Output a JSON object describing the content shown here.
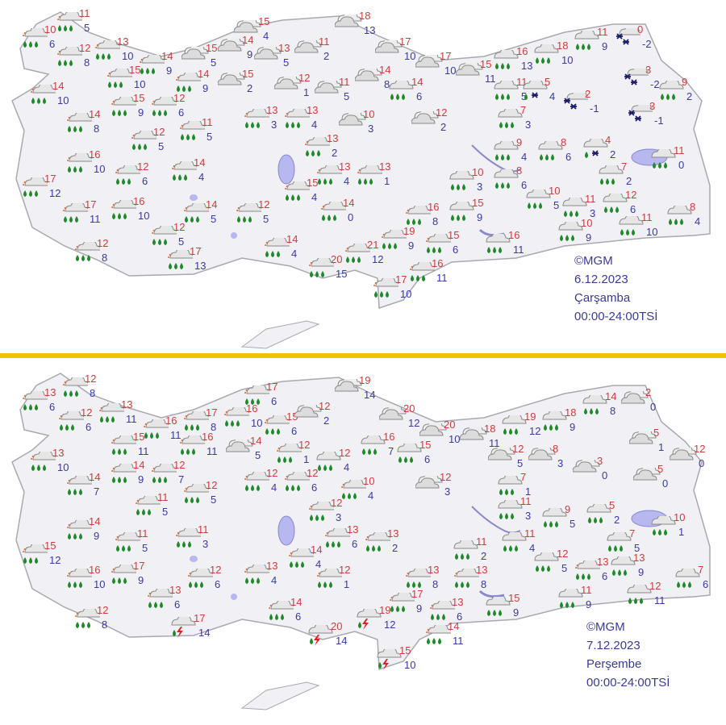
{
  "colors": {
    "divider": "#f2c200",
    "max_temp": "#d23a3a",
    "min_temp": "#3838a8",
    "land": "#f1f1f5",
    "border": "#b8b8c0",
    "water": "#b8b8f0",
    "rain_drop": "#1f8a2a"
  },
  "icon_legend": {
    "sr": "sun-cloud-rain-icon",
    "c": "cloud-icon",
    "r": "rain-icon",
    "s": "snow-icon",
    "rs": "rain-snow-icon",
    "t": "thunderstorm-icon"
  },
  "maps": [
    {
      "credit": "©MGM",
      "date": "6.12.2023",
      "day": "Çarşamba",
      "period": "00:00-24:00TSİ",
      "stations": [
        {
          "icon": "sr",
          "high": "10",
          "low": "6"
        },
        {
          "icon": "sr",
          "high": "11",
          "low": "5"
        },
        {
          "icon": "sr",
          "high": "12",
          "low": "8"
        },
        {
          "icon": "sr",
          "high": "13",
          "low": "10"
        },
        {
          "icon": "sr",
          "high": "15",
          "low": "10"
        },
        {
          "icon": "sr",
          "high": "14",
          "low": "9"
        },
        {
          "icon": "sr",
          "high": "14",
          "low": "9"
        },
        {
          "icon": "c",
          "high": "15",
          "low": "5"
        },
        {
          "icon": "c",
          "high": "14",
          "low": "9"
        },
        {
          "icon": "c",
          "high": "13",
          "low": "5"
        },
        {
          "icon": "c",
          "high": "11",
          "low": "2"
        },
        {
          "icon": "c",
          "high": "15",
          "low": "4"
        },
        {
          "icon": "c",
          "high": "15",
          "low": "2"
        },
        {
          "icon": "c",
          "high": "12",
          "low": "1"
        },
        {
          "icon": "c",
          "high": "11",
          "low": "5"
        },
        {
          "icon": "c",
          "high": "18",
          "low": "13"
        },
        {
          "icon": "c",
          "high": "17",
          "low": "10"
        },
        {
          "icon": "c",
          "high": "17",
          "low": "10"
        },
        {
          "icon": "c",
          "high": "14",
          "low": "8"
        },
        {
          "icon": "r",
          "high": "14",
          "low": "6"
        },
        {
          "icon": "c",
          "high": "15",
          "low": "11"
        },
        {
          "icon": "r",
          "high": "16",
          "low": "13"
        },
        {
          "icon": "r",
          "high": "18",
          "low": "10"
        },
        {
          "icon": "r",
          "high": "11",
          "low": "9"
        },
        {
          "icon": "s",
          "high": "0",
          "low": "-2"
        },
        {
          "icon": "s",
          "high": "3",
          "low": "-2"
        },
        {
          "icon": "r",
          "high": "9",
          "low": "2"
        },
        {
          "icon": "r",
          "high": "11",
          "low": "5"
        },
        {
          "icon": "rs",
          "high": "5",
          "low": "4"
        },
        {
          "icon": "s",
          "high": "2",
          "low": "-1"
        },
        {
          "icon": "s",
          "high": "3",
          "low": "-1"
        },
        {
          "icon": "r",
          "high": "7",
          "low": "3"
        },
        {
          "icon": "c",
          "high": "12",
          "low": "2"
        },
        {
          "icon": "c",
          "high": "10",
          "low": "3"
        },
        {
          "icon": "sr",
          "high": "14",
          "low": "10"
        },
        {
          "icon": "sr",
          "high": "14",
          "low": "8"
        },
        {
          "icon": "sr",
          "high": "15",
          "low": "9"
        },
        {
          "icon": "sr",
          "high": "12",
          "low": "6"
        },
        {
          "icon": "sr",
          "high": "11",
          "low": "5"
        },
        {
          "icon": "sr",
          "high": "12",
          "low": "5"
        },
        {
          "icon": "sr",
          "high": "13",
          "low": "3"
        },
        {
          "icon": "sr",
          "high": "13",
          "low": "4"
        },
        {
          "icon": "sr",
          "high": "13",
          "low": "2"
        },
        {
          "icon": "sr",
          "high": "16",
          "low": "10"
        },
        {
          "icon": "sr",
          "high": "12",
          "low": "6"
        },
        {
          "icon": "sr",
          "high": "14",
          "low": "4"
        },
        {
          "icon": "sr",
          "high": "17",
          "low": "12"
        },
        {
          "icon": "sr",
          "high": "17",
          "low": "11"
        },
        {
          "icon": "sr",
          "high": "16",
          "low": "10"
        },
        {
          "icon": "sr",
          "high": "12",
          "low": "5"
        },
        {
          "icon": "sr",
          "high": "14",
          "low": "5"
        },
        {
          "icon": "sr",
          "high": "12",
          "low": "5"
        },
        {
          "icon": "sr",
          "high": "15",
          "low": "4"
        },
        {
          "icon": "sr",
          "high": "13",
          "low": "4"
        },
        {
          "icon": "sr",
          "high": "13",
          "low": "1"
        },
        {
          "icon": "sr",
          "high": "14",
          "low": "0"
        },
        {
          "icon": "sr",
          "high": "12",
          "low": "8"
        },
        {
          "icon": "sr",
          "high": "17",
          "low": "13"
        },
        {
          "icon": "sr",
          "high": "14",
          "low": "4"
        },
        {
          "icon": "sr",
          "high": "20",
          "low": "15"
        },
        {
          "icon": "sr",
          "high": "21",
          "low": "12"
        },
        {
          "icon": "sr",
          "high": "19",
          "low": "9"
        },
        {
          "icon": "sr",
          "high": "16",
          "low": "8"
        },
        {
          "icon": "sr",
          "high": "15",
          "low": "6"
        },
        {
          "icon": "sr",
          "high": "16",
          "low": "11"
        },
        {
          "icon": "sr",
          "high": "17",
          "low": "10"
        },
        {
          "icon": "r",
          "high": "15",
          "low": "9"
        },
        {
          "icon": "r",
          "high": "10",
          "low": "3"
        },
        {
          "icon": "r",
          "high": "8",
          "low": "6"
        },
        {
          "icon": "r",
          "high": "9",
          "low": "4"
        },
        {
          "icon": "r",
          "high": "8",
          "low": "6"
        },
        {
          "icon": "rs",
          "high": "4",
          "low": "2"
        },
        {
          "icon": "r",
          "high": "7",
          "low": "2"
        },
        {
          "icon": "r",
          "high": "11",
          "low": "0"
        },
        {
          "icon": "r",
          "high": "10",
          "low": "5"
        },
        {
          "icon": "r",
          "high": "11",
          "low": "3"
        },
        {
          "icon": "r",
          "high": "12",
          "low": "6"
        },
        {
          "icon": "r",
          "high": "10",
          "low": "9"
        },
        {
          "icon": "r",
          "high": "16",
          "low": "11"
        },
        {
          "icon": "r",
          "high": "11",
          "low": "10"
        },
        {
          "icon": "r",
          "high": "8",
          "low": "4"
        }
      ]
    },
    {
      "credit": "©MGM",
      "date": "7.12.2023",
      "day": "Perşembe",
      "period": "00:00-24:00TSİ",
      "stations": [
        {
          "icon": "sr",
          "high": "13",
          "low": "6"
        },
        {
          "icon": "sr",
          "high": "12",
          "low": "8"
        },
        {
          "icon": "sr",
          "high": "12",
          "low": "6"
        },
        {
          "icon": "sr",
          "high": "13",
          "low": "11"
        },
        {
          "icon": "sr",
          "high": "15",
          "low": "11"
        },
        {
          "icon": "sr",
          "high": "16",
          "low": "11"
        },
        {
          "icon": "sr",
          "high": "17",
          "low": "8"
        },
        {
          "icon": "sr",
          "high": "16",
          "low": "11"
        },
        {
          "icon": "sr",
          "high": "16",
          "low": "10"
        },
        {
          "icon": "sr",
          "high": "17",
          "low": "6"
        },
        {
          "icon": "sr",
          "high": "15",
          "low": "6"
        },
        {
          "icon": "c",
          "high": "12",
          "low": "2"
        },
        {
          "icon": "c",
          "high": "19",
          "low": "14"
        },
        {
          "icon": "c",
          "high": "20",
          "low": "12"
        },
        {
          "icon": "c",
          "high": "20",
          "low": "10"
        },
        {
          "icon": "c",
          "high": "18",
          "low": "11"
        },
        {
          "icon": "r",
          "high": "19",
          "low": "12"
        },
        {
          "icon": "r",
          "high": "18",
          "low": "9"
        },
        {
          "icon": "r",
          "high": "14",
          "low": "8"
        },
        {
          "icon": "c",
          "high": "2",
          "low": "0"
        },
        {
          "icon": "c",
          "high": "5",
          "low": "1"
        },
        {
          "icon": "c",
          "high": "12",
          "low": "0"
        },
        {
          "icon": "sr",
          "high": "13",
          "low": "10"
        },
        {
          "icon": "sr",
          "high": "14",
          "low": "7"
        },
        {
          "icon": "sr",
          "high": "14",
          "low": "9"
        },
        {
          "icon": "sr",
          "high": "12",
          "low": "7"
        },
        {
          "icon": "c",
          "high": "14",
          "low": "5"
        },
        {
          "icon": "sr",
          "high": "12",
          "low": "1"
        },
        {
          "icon": "r",
          "high": "12",
          "low": "4"
        },
        {
          "icon": "r",
          "high": "16",
          "low": "7"
        },
        {
          "icon": "r",
          "high": "15",
          "low": "6"
        },
        {
          "icon": "c",
          "high": "12",
          "low": "5"
        },
        {
          "icon": "c",
          "high": "8",
          "low": "3"
        },
        {
          "icon": "c",
          "high": "3",
          "low": "0"
        },
        {
          "icon": "c",
          "high": "5",
          "low": "0"
        },
        {
          "icon": "c",
          "high": "12",
          "low": "3"
        },
        {
          "icon": "r",
          "high": "7",
          "low": "1"
        },
        {
          "icon": "sr",
          "high": "12",
          "low": "4"
        },
        {
          "icon": "sr",
          "high": "12",
          "low": "6"
        },
        {
          "icon": "sr",
          "high": "10",
          "low": "4"
        },
        {
          "icon": "sr",
          "high": "12",
          "low": "5"
        },
        {
          "icon": "sr",
          "high": "11",
          "low": "5"
        },
        {
          "icon": "sr",
          "high": "14",
          "low": "9"
        },
        {
          "icon": "sr",
          "high": "11",
          "low": "5"
        },
        {
          "icon": "sr",
          "high": "11",
          "low": "3"
        },
        {
          "icon": "sr",
          "high": "12",
          "low": "3"
        },
        {
          "icon": "sr",
          "high": "13",
          "low": "6"
        },
        {
          "icon": "sr",
          "high": "13",
          "low": "2"
        },
        {
          "icon": "sr",
          "high": "15",
          "low": "12"
        },
        {
          "icon": "sr",
          "high": "16",
          "low": "10"
        },
        {
          "icon": "sr",
          "high": "17",
          "low": "9"
        },
        {
          "icon": "sr",
          "high": "12",
          "low": "6"
        },
        {
          "icon": "sr",
          "high": "13",
          "low": "4"
        },
        {
          "icon": "sr",
          "high": "14",
          "low": "4"
        },
        {
          "icon": "sr",
          "high": "12",
          "low": "1"
        },
        {
          "icon": "sr",
          "high": "12",
          "low": "8"
        },
        {
          "icon": "sr",
          "high": "13",
          "low": "6"
        },
        {
          "icon": "t",
          "high": "17",
          "low": "14"
        },
        {
          "icon": "sr",
          "high": "14",
          "low": "6"
        },
        {
          "icon": "t",
          "high": "20",
          "low": "14"
        },
        {
          "icon": "t",
          "high": "19",
          "low": "12"
        },
        {
          "icon": "t",
          "high": "15",
          "low": "10"
        },
        {
          "icon": "sr",
          "high": "17",
          "low": "9"
        },
        {
          "icon": "sr",
          "high": "13",
          "low": "8"
        },
        {
          "icon": "sr",
          "high": "13",
          "low": "6"
        },
        {
          "icon": "sr",
          "high": "14",
          "low": "11"
        },
        {
          "icon": "sr",
          "high": "13",
          "low": "8"
        },
        {
          "icon": "r",
          "high": "11",
          "low": "2"
        },
        {
          "icon": "r",
          "high": "11",
          "low": "4"
        },
        {
          "icon": "r",
          "high": "11",
          "low": "3"
        },
        {
          "icon": "r",
          "high": "9",
          "low": "5"
        },
        {
          "icon": "r",
          "high": "5",
          "low": "2"
        },
        {
          "icon": "r",
          "high": "7",
          "low": "5"
        },
        {
          "icon": "r",
          "high": "10",
          "low": "1"
        },
        {
          "icon": "r",
          "high": "12",
          "low": "5"
        },
        {
          "icon": "sr",
          "high": "13",
          "low": "6"
        },
        {
          "icon": "r",
          "high": "13",
          "low": "9"
        },
        {
          "icon": "r",
          "high": "15",
          "low": "9"
        },
        {
          "icon": "r",
          "high": "11",
          "low": "9"
        },
        {
          "icon": "r",
          "high": "12",
          "low": "11"
        },
        {
          "icon": "r",
          "high": "7",
          "low": "6"
        }
      ]
    }
  ]
}
